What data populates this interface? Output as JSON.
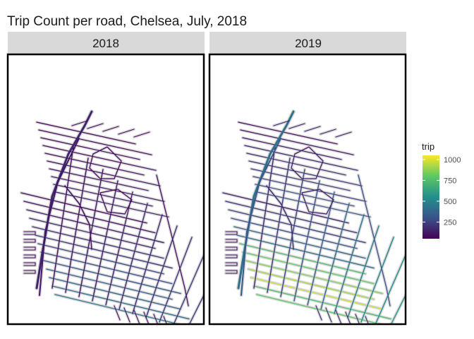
{
  "title": "Trip Count per road, Chelsea, July, 2018",
  "facets": [
    {
      "label": "2018"
    },
    {
      "label": "2019"
    }
  ],
  "legend": {
    "title": "trip",
    "ticks": [
      "1000",
      "750",
      "500",
      "250"
    ],
    "tick_values": [
      1000,
      750,
      500,
      250
    ],
    "range": [
      50,
      1050
    ],
    "colors": [
      "#440154",
      "#3b528b",
      "#21908c",
      "#5dc863",
      "#fde725"
    ]
  },
  "base_road_color": "#d9d9d9",
  "chart_data": {
    "type": "heatmap",
    "title": "Trip Count per road, Chelsea, July, 2018",
    "facets": [
      "2018",
      "2019"
    ],
    "color_scale": "viridis",
    "legend_title": "trip",
    "legend_ticks": [
      250,
      500,
      750,
      1000
    ],
    "legend_range": [
      50,
      1050
    ],
    "legend_position": "right"
  }
}
